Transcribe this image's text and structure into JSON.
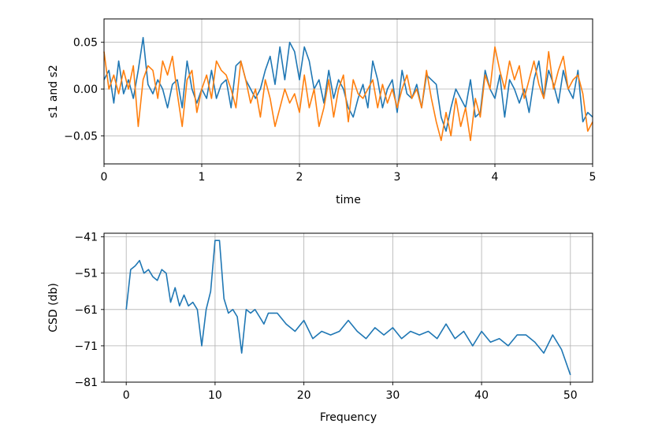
{
  "chart_data": [
    {
      "type": "line",
      "xlabel": "time",
      "ylabel": "s1 and s2",
      "xlim": [
        0,
        5
      ],
      "ylim": [
        -0.08,
        0.075
      ],
      "grid": true,
      "xticks": [
        0,
        1,
        2,
        3,
        4,
        5
      ],
      "xtick_labels": [
        "0",
        "1",
        "2",
        "3",
        "4",
        "5"
      ],
      "yticks": [
        0.05,
        0.0,
        -0.05
      ],
      "ytick_labels": [
        "0.05",
        "0.00",
        "−0.05"
      ],
      "series": [
        {
          "color": "#1f77b4",
          "x": [
            0.0,
            0.05,
            0.1,
            0.15,
            0.2,
            0.25,
            0.3,
            0.35,
            0.4,
            0.45,
            0.5,
            0.55,
            0.6,
            0.65,
            0.7,
            0.75,
            0.8,
            0.85,
            0.9,
            0.95,
            1.0,
            1.05,
            1.1,
            1.15,
            1.2,
            1.25,
            1.3,
            1.35,
            1.4,
            1.45,
            1.5,
            1.55,
            1.6,
            1.65,
            1.7,
            1.75,
            1.8,
            1.85,
            1.9,
            1.95,
            2.0,
            2.05,
            2.1,
            2.15,
            2.2,
            2.25,
            2.3,
            2.35,
            2.4,
            2.45,
            2.5,
            2.55,
            2.6,
            2.65,
            2.7,
            2.75,
            2.8,
            2.85,
            2.9,
            2.95,
            3.0,
            3.05,
            3.1,
            3.15,
            3.2,
            3.25,
            3.3,
            3.35,
            3.4,
            3.45,
            3.5,
            3.55,
            3.6,
            3.65,
            3.7,
            3.75,
            3.8,
            3.85,
            3.9,
            3.95,
            4.0,
            4.05,
            4.1,
            4.15,
            4.2,
            4.25,
            4.3,
            4.35,
            4.4,
            4.45,
            4.5,
            4.55,
            4.6,
            4.65,
            4.7,
            4.75,
            4.8,
            4.85,
            4.9,
            4.95,
            5.0
          ],
          "values": [
            0.01,
            0.02,
            -0.015,
            0.03,
            -0.005,
            0.01,
            -0.01,
            0.02,
            0.055,
            0.005,
            -0.005,
            0.01,
            0.0,
            -0.02,
            0.005,
            0.01,
            -0.02,
            0.03,
            0.0,
            -0.015,
            0.0,
            -0.01,
            0.02,
            -0.01,
            0.005,
            0.01,
            -0.02,
            0.025,
            0.03,
            0.01,
            0.0,
            -0.01,
            0.0,
            0.02,
            0.035,
            0.005,
            0.045,
            0.01,
            0.05,
            0.04,
            0.01,
            0.045,
            0.03,
            0.0,
            0.01,
            -0.015,
            0.02,
            -0.01,
            0.01,
            0.0,
            -0.02,
            -0.03,
            -0.01,
            0.005,
            -0.02,
            0.03,
            0.01,
            -0.02,
            0.0,
            0.01,
            -0.025,
            0.02,
            -0.005,
            -0.01,
            0.005,
            -0.02,
            0.015,
            0.01,
            0.005,
            -0.03,
            -0.045,
            -0.02,
            0.0,
            -0.01,
            -0.02,
            0.01,
            -0.03,
            -0.025,
            0.02,
            0.0,
            -0.01,
            0.015,
            -0.03,
            0.01,
            0.0,
            -0.015,
            0.0,
            -0.025,
            0.01,
            0.03,
            -0.01,
            0.02,
            0.005,
            -0.015,
            0.02,
            0.0,
            -0.01,
            0.02,
            -0.035,
            -0.025,
            -0.03
          ]
        },
        {
          "color": "#ff7f0e",
          "x": [
            0.0,
            0.05,
            0.1,
            0.15,
            0.2,
            0.25,
            0.3,
            0.35,
            0.4,
            0.45,
            0.5,
            0.55,
            0.6,
            0.65,
            0.7,
            0.75,
            0.8,
            0.85,
            0.9,
            0.95,
            1.0,
            1.05,
            1.1,
            1.15,
            1.2,
            1.25,
            1.3,
            1.35,
            1.4,
            1.45,
            1.5,
            1.55,
            1.6,
            1.65,
            1.7,
            1.75,
            1.8,
            1.85,
            1.9,
            1.95,
            2.0,
            2.05,
            2.1,
            2.15,
            2.2,
            2.25,
            2.3,
            2.35,
            2.4,
            2.45,
            2.5,
            2.55,
            2.6,
            2.65,
            2.7,
            2.75,
            2.8,
            2.85,
            2.9,
            2.95,
            3.0,
            3.05,
            3.1,
            3.15,
            3.2,
            3.25,
            3.3,
            3.35,
            3.4,
            3.45,
            3.5,
            3.55,
            3.6,
            3.65,
            3.7,
            3.75,
            3.8,
            3.85,
            3.9,
            3.95,
            4.0,
            4.05,
            4.1,
            4.15,
            4.2,
            4.25,
            4.3,
            4.35,
            4.4,
            4.45,
            4.5,
            4.55,
            4.6,
            4.65,
            4.7,
            4.75,
            4.8,
            4.85,
            4.9,
            4.95,
            5.0
          ],
          "values": [
            0.04,
            0.0,
            0.015,
            -0.005,
            0.02,
            0.0,
            0.025,
            -0.04,
            0.01,
            0.025,
            0.02,
            -0.01,
            0.03,
            0.015,
            0.035,
            -0.005,
            -0.04,
            0.01,
            0.02,
            -0.025,
            0.0,
            0.015,
            -0.01,
            0.03,
            0.02,
            0.015,
            0.0,
            -0.02,
            0.03,
            0.01,
            -0.015,
            0.0,
            -0.03,
            0.01,
            -0.01,
            -0.04,
            -0.02,
            0.0,
            -0.015,
            -0.005,
            -0.025,
            0.015,
            -0.02,
            0.0,
            -0.04,
            -0.02,
            0.01,
            -0.03,
            0.0,
            0.015,
            -0.035,
            0.01,
            -0.005,
            -0.01,
            0.0,
            0.01,
            -0.02,
            0.005,
            -0.015,
            0.0,
            -0.02,
            0.0,
            0.015,
            -0.01,
            0.0,
            -0.02,
            0.02,
            -0.01,
            -0.035,
            -0.055,
            -0.025,
            -0.05,
            -0.01,
            -0.04,
            -0.02,
            -0.055,
            -0.01,
            -0.03,
            0.015,
            0.0,
            0.045,
            0.02,
            0.0,
            0.03,
            0.01,
            0.025,
            -0.01,
            0.01,
            0.03,
            0.005,
            -0.01,
            0.04,
            0.0,
            0.02,
            0.035,
            0.0,
            0.01,
            0.015,
            -0.005,
            -0.045,
            -0.035
          ]
        }
      ]
    },
    {
      "type": "line",
      "xlabel": "Frequency",
      "ylabel": "CSD (db)",
      "xlim": [
        -2.5,
        52.5
      ],
      "ylim": [
        -81,
        -40
      ],
      "grid": true,
      "xticks": [
        0,
        10,
        20,
        30,
        40,
        50
      ],
      "xtick_labels": [
        "0",
        "10",
        "20",
        "30",
        "40",
        "50"
      ],
      "yticks": [
        -41,
        -51,
        -61,
        -71,
        -81
      ],
      "ytick_labels": [
        "−41",
        "−51",
        "−61",
        "−71",
        "−81"
      ],
      "series": [
        {
          "color": "#1f77b4",
          "x": [
            0,
            0.5,
            1,
            1.5,
            2,
            2.5,
            3,
            3.5,
            4,
            4.5,
            5,
            5.5,
            6,
            6.5,
            7,
            7.5,
            8,
            8.5,
            9,
            9.5,
            10,
            10.5,
            11,
            11.5,
            12,
            12.5,
            13,
            13.5,
            14,
            14.5,
            15,
            15.5,
            16,
            17,
            18,
            19,
            20,
            21,
            22,
            23,
            24,
            25,
            26,
            27,
            28,
            29,
            30,
            31,
            32,
            33,
            34,
            35,
            36,
            37,
            38,
            39,
            40,
            41,
            42,
            43,
            44,
            45,
            46,
            47,
            48,
            49,
            50
          ],
          "values": [
            -61,
            -50,
            -49,
            -47.5,
            -51,
            -50,
            -52,
            -53,
            -50,
            -51,
            -59,
            -55,
            -60,
            -57,
            -60,
            -59,
            -61,
            -71,
            -61,
            -56,
            -42,
            -42,
            -58,
            -62,
            -61,
            -63,
            -73,
            -61,
            -62,
            -61,
            -63,
            -65,
            -62,
            -62,
            -65,
            -67,
            -64,
            -69,
            -67,
            -68,
            -67,
            -64,
            -67,
            -69,
            -66,
            -68,
            -66,
            -69,
            -67,
            -68,
            -67,
            -69,
            -65,
            -69,
            -67,
            -71,
            -67,
            -70,
            -69,
            -71,
            -68,
            -68,
            -70,
            -73,
            -68,
            -72,
            -79
          ]
        }
      ]
    }
  ]
}
